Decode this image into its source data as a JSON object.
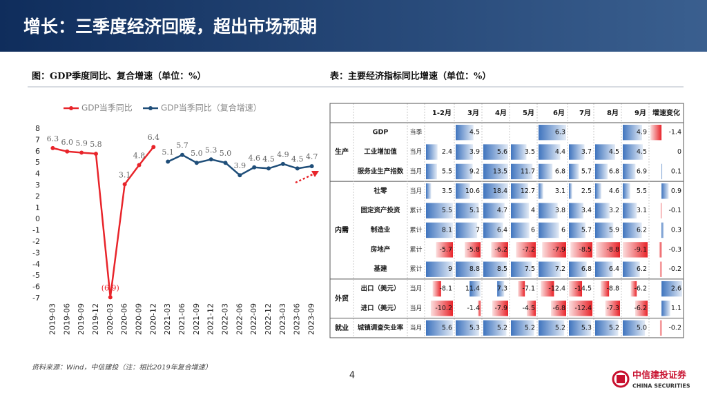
{
  "header": {
    "title": "增长：三季度经济回暖，超出市场预期"
  },
  "chart_caption": "图：GDP季度同比、复合增速（单位：%）",
  "chart_data": {
    "type": "line",
    "categories": [
      "2019-03",
      "2019-06",
      "2019-09",
      "2019-12",
      "2020-03",
      "2020-06",
      "2020-09",
      "2020-12",
      "2021-03",
      "2021-06",
      "2021-09",
      "2021-12",
      "2022-03",
      "2022-06",
      "2022-09",
      "2022-12",
      "2023-03",
      "2023-06",
      "2023-09"
    ],
    "series": [
      {
        "name": "GDP当季同比",
        "color": "#e8242a",
        "values": [
          6.3,
          6.0,
          5.9,
          5.8,
          -6.9,
          3.1,
          4.8,
          6.4,
          null,
          null,
          null,
          null,
          null,
          null,
          null,
          null,
          null,
          null,
          null
        ],
        "value_labels": [
          "6.3",
          "6.0",
          "5.9",
          "5.8",
          "(6.9)",
          "3.1",
          "4.8",
          "6.4",
          null,
          null,
          null,
          null,
          null,
          null,
          null,
          null,
          null,
          null,
          null
        ]
      },
      {
        "name": "GDP当季同比（复合增速）",
        "color": "#1f4e79",
        "values": [
          null,
          null,
          null,
          null,
          null,
          null,
          null,
          null,
          5.1,
          5.7,
          5.0,
          5.3,
          5.0,
          3.9,
          4.6,
          4.5,
          4.9,
          4.5,
          4.7
        ],
        "value_labels": [
          null,
          null,
          null,
          null,
          null,
          null,
          null,
          null,
          "5.1",
          "5.7",
          "5.0",
          "5.3",
          "5.0",
          "3.9",
          "4.6",
          "4.5",
          "4.9",
          "4.5",
          "4.7"
        ]
      }
    ],
    "ylim": [
      -7,
      8
    ],
    "yticks": [
      -7,
      -6,
      -5,
      -4,
      -3,
      -2,
      -1,
      0,
      1,
      2,
      3,
      4,
      5,
      6,
      7,
      8
    ],
    "legend": "top"
  },
  "table": {
    "caption": "表：主要经济指标同比增速（单位：%）",
    "columns": [
      "1-2月",
      "3月",
      "4月",
      "5月",
      "6月",
      "7月",
      "8月",
      "9月",
      "增速变化"
    ],
    "groups": [
      {
        "label": "生产",
        "rows": [
          {
            "name": "GDP",
            "kind": "当季",
            "values": [
              null,
              "4.5",
              null,
              null,
              "6.3",
              null,
              null,
              "4.9",
              "-1.4"
            ]
          },
          {
            "name": "工业增加值",
            "kind": "当月",
            "values": [
              "2.4",
              "3.9",
              "5.6",
              "3.5",
              "4.4",
              "3.7",
              "4.5",
              "4.5",
              "0"
            ]
          },
          {
            "name": "服务业生产指数",
            "kind": "当月",
            "values": [
              "5.5",
              "9.2",
              "13.5",
              "11.7",
              "6.8",
              "5.7",
              "6.8",
              "6.9",
              "0.1"
            ]
          }
        ]
      },
      {
        "label": "内需",
        "rows": [
          {
            "name": "社零",
            "kind": "当月",
            "values": [
              "3.5",
              "10.6",
              "18.4",
              "12.7",
              "3.1",
              "2.5",
              "4.6",
              "5.5",
              "0.9"
            ]
          },
          {
            "name": "固定资产投资",
            "kind": "累计",
            "values": [
              "5.5",
              "5.1",
              "4.7",
              "4",
              "3.8",
              "3.4",
              "3.2",
              "3.1",
              "-0.1"
            ]
          },
          {
            "name": "制造业",
            "kind": "累计",
            "values": [
              "8.1",
              "7",
              "6.4",
              "6",
              "6",
              "5.7",
              "5.9",
              "6.2",
              "0.3"
            ]
          },
          {
            "name": "房地产",
            "kind": "累计",
            "values": [
              "-5.7",
              "-5.8",
              "-6.2",
              "-7.2",
              "-7.9",
              "-8.5",
              "-8.8",
              "-9.1",
              "-0.3"
            ]
          },
          {
            "name": "基建",
            "kind": "累计",
            "values": [
              "9",
              "8.8",
              "8.5",
              "7.5",
              "7.2",
              "6.8",
              "6.4",
              "6.2",
              "-0.2"
            ]
          }
        ]
      },
      {
        "label": "外贸",
        "rows": [
          {
            "name": "出口（美元）",
            "kind": "当月",
            "values": [
              "-8.1",
              "11.4",
              "7.3",
              "-7.1",
              "-12.4",
              "-14.5",
              "-8.8",
              "-6.2",
              "2.6"
            ]
          },
          {
            "name": "进口（美元）",
            "kind": "当月",
            "values": [
              "-10.2",
              "-1.4",
              "-7.9",
              "-4.5",
              "-6.8",
              "-12.4",
              "-7.3",
              "-6.2",
              "1.1"
            ]
          }
        ]
      },
      {
        "label": "就业",
        "rows": [
          {
            "name": "城镇调查失业率",
            "kind": "当月",
            "values": [
              "5.6",
              "5.3",
              "5.2",
              "5.2",
              "5.2",
              "5.3",
              "5.2",
              "5.0",
              "-0.2"
            ]
          }
        ]
      }
    ]
  },
  "footer": {
    "source": "资料来源：Wind，中信建投（注：相比2019年复合增速）",
    "page": "4",
    "logo": "中信建投证券",
    "logo_en": "CHINA SECURITIES"
  }
}
